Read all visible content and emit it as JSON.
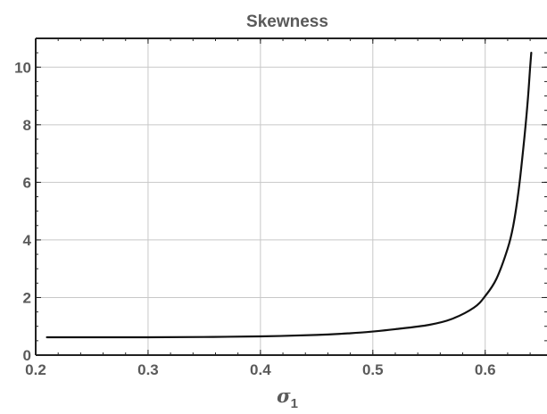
{
  "chart_data": {
    "type": "line",
    "title": "Skewness",
    "xlabel": "σ",
    "xlabel_subscript": "1",
    "ylabel": "",
    "xlim": [
      0.2,
      0.655
    ],
    "ylim": [
      0,
      11
    ],
    "x_ticks": [
      0.2,
      0.3,
      0.4,
      0.5,
      0.6
    ],
    "x_tick_labels": [
      "0.2",
      "0.3",
      "0.4",
      "0.5",
      "0.6"
    ],
    "y_ticks": [
      0,
      2,
      4,
      6,
      8,
      10
    ],
    "y_tick_labels": [
      "0",
      "2",
      "4",
      "6",
      "8",
      "10"
    ],
    "grid": true,
    "series": [
      {
        "color": "#111111",
        "x": [
          0.21,
          0.25,
          0.3,
          0.35,
          0.4,
          0.45,
          0.48,
          0.5,
          0.52,
          0.55,
          0.57,
          0.59,
          0.6,
          0.61,
          0.62,
          0.625,
          0.63,
          0.635,
          0.638,
          0.64,
          0.641
        ],
        "y": [
          0.62,
          0.62,
          0.62,
          0.63,
          0.65,
          0.7,
          0.76,
          0.82,
          0.9,
          1.05,
          1.25,
          1.65,
          2.05,
          2.65,
          3.7,
          4.5,
          5.8,
          7.6,
          8.9,
          10.0,
          10.5
        ]
      }
    ]
  }
}
